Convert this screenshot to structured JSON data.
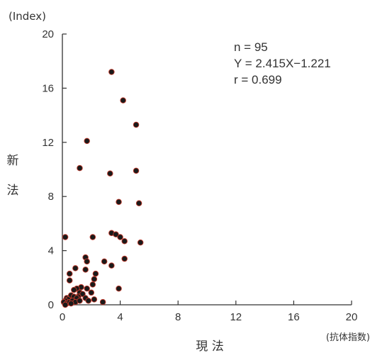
{
  "chart_data": {
    "type": "scatter",
    "ylabel_unit": "(Index)",
    "xlabel_unit": "(抗体指数)",
    "ylabel": "新\n法",
    "xlabel": "現 法",
    "xlim": [
      0,
      20
    ],
    "ylim": [
      0,
      20
    ],
    "xticks": [
      0,
      4,
      8,
      12,
      16,
      20
    ],
    "yticks": [
      0,
      4,
      8,
      12,
      16,
      20
    ],
    "grid": false,
    "annotations": [
      "n = 95",
      "Y = 2.415X−1.221",
      "r = 0.699"
    ],
    "points": [
      [
        3.4,
        17.2
      ],
      [
        4.2,
        15.1
      ],
      [
        5.1,
        13.3
      ],
      [
        1.7,
        12.1
      ],
      [
        1.2,
        10.1
      ],
      [
        3.3,
        9.7
      ],
      [
        5.1,
        9.9
      ],
      [
        3.9,
        7.6
      ],
      [
        5.3,
        7.5
      ],
      [
        0.2,
        5.0
      ],
      [
        2.1,
        5.0
      ],
      [
        3.4,
        5.3
      ],
      [
        3.7,
        5.2
      ],
      [
        4.0,
        5.0
      ],
      [
        4.3,
        4.7
      ],
      [
        5.4,
        4.6
      ],
      [
        1.6,
        3.5
      ],
      [
        1.7,
        3.2
      ],
      [
        4.3,
        3.4
      ],
      [
        2.9,
        3.2
      ],
      [
        3.4,
        2.9
      ],
      [
        0.9,
        2.7
      ],
      [
        1.6,
        2.6
      ],
      [
        0.5,
        2.3
      ],
      [
        2.3,
        2.3
      ],
      [
        2.2,
        1.9
      ],
      [
        0.5,
        1.8
      ],
      [
        2.1,
        1.5
      ],
      [
        3.9,
        1.2
      ],
      [
        1.7,
        1.2
      ],
      [
        1.3,
        1.3
      ],
      [
        1.0,
        1.2
      ],
      [
        0.8,
        1.1
      ],
      [
        1.2,
        0.9
      ],
      [
        2.0,
        0.9
      ],
      [
        1.4,
        0.8
      ],
      [
        0.6,
        0.7
      ],
      [
        0.8,
        0.6
      ],
      [
        1.1,
        0.6
      ],
      [
        1.0,
        0.5
      ],
      [
        1.6,
        0.5
      ],
      [
        2.2,
        0.4
      ],
      [
        0.3,
        0.5
      ],
      [
        0.4,
        0.4
      ],
      [
        0.2,
        0.3
      ],
      [
        0.1,
        0.2
      ],
      [
        0.3,
        0.1
      ],
      [
        0.5,
        0.2
      ],
      [
        0.7,
        0.3
      ],
      [
        0.9,
        0.2
      ],
      [
        1.2,
        0.3
      ],
      [
        1.8,
        0.3
      ],
      [
        2.8,
        0.2
      ],
      [
        0.6,
        0.1
      ],
      [
        0.2,
        0.0
      ]
    ],
    "point_color": "#1a1a1a",
    "point_edge_color": "#c0392b"
  }
}
